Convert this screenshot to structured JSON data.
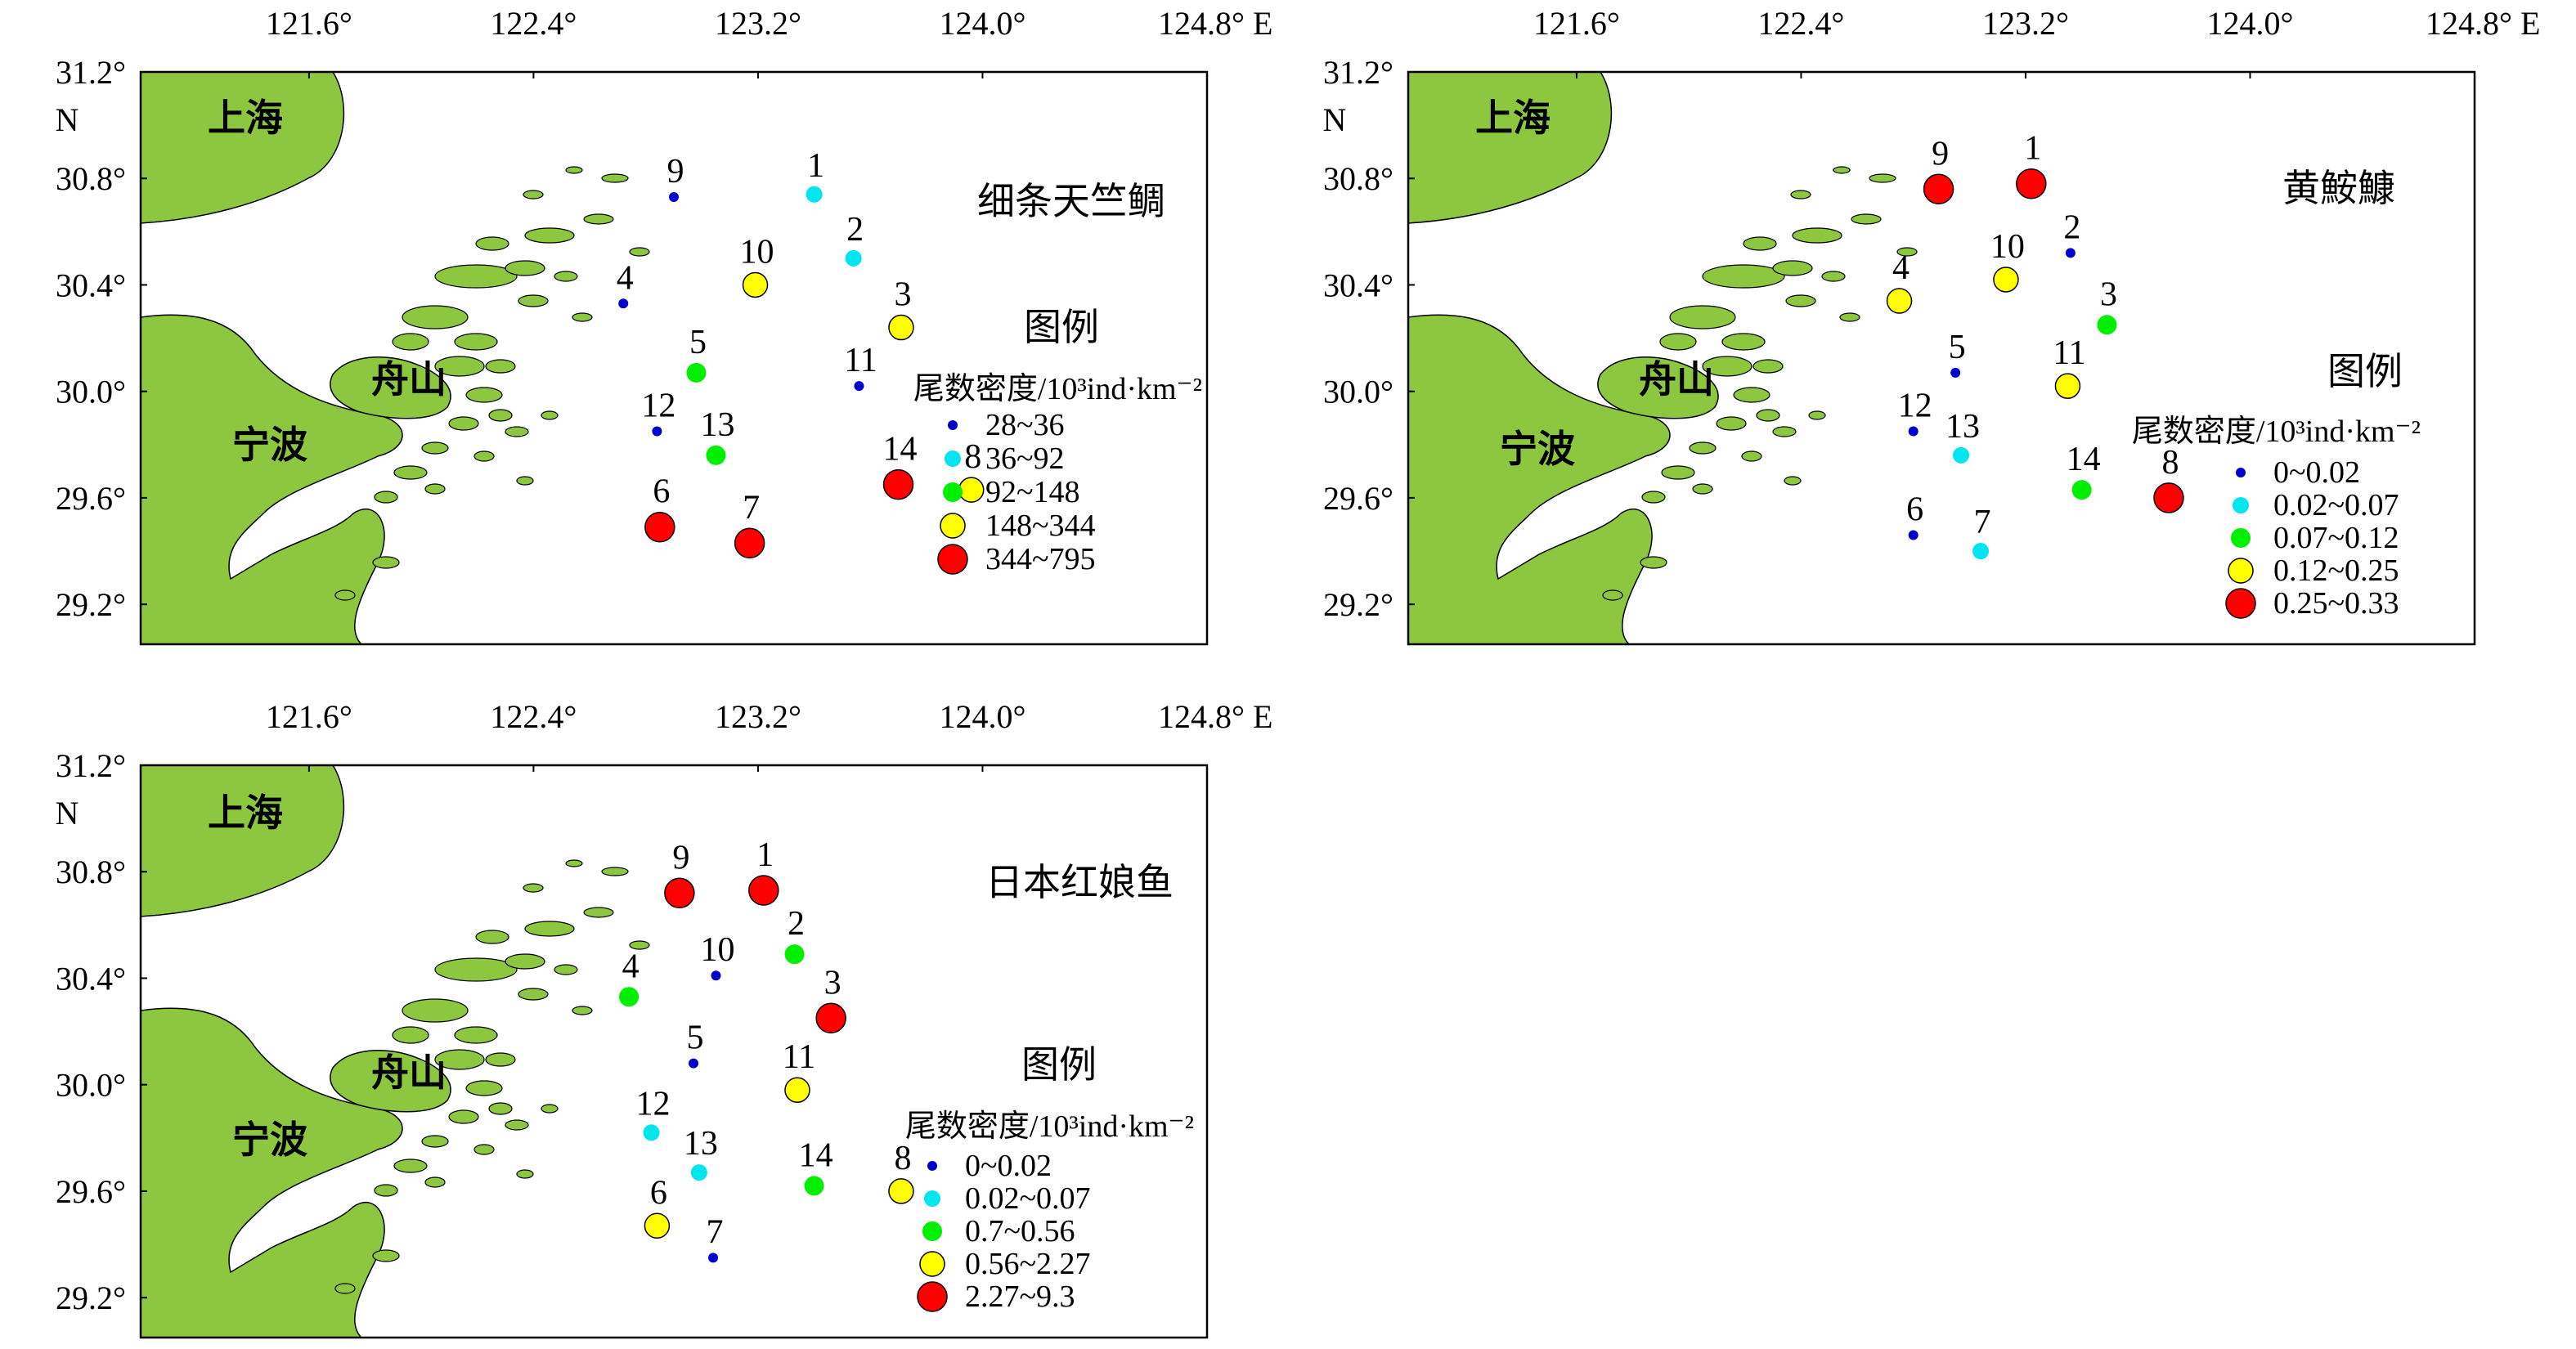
{
  "axes": {
    "lon_ticks": [
      121.6,
      122.4,
      123.2,
      124.0,
      124.8
    ],
    "lon_labels": [
      "121.6°",
      "122.4°",
      "123.2°",
      "124.0°",
      "124.8° E"
    ],
    "lat_ticks": [
      31.2,
      30.8,
      30.4,
      30.0,
      29.6,
      29.2
    ],
    "lat_labels": [
      "31.2°",
      "30.8°",
      "30.4°",
      "30.0°",
      "29.6°",
      "29.2°"
    ],
    "north_label": "N",
    "lon_range": [
      121.0,
      124.8
    ],
    "lat_range": [
      29.05,
      31.2
    ]
  },
  "places": {
    "shanghai": "上海",
    "zhoushan": "舟山",
    "ningbo": "宁波"
  },
  "legend_title": "图例",
  "legend_unit": "尾数密度/10³ind·km⁻²",
  "colors": {
    "land": "#8dc63f",
    "c1": "#0000cc",
    "c2": "#00e5ee",
    "c3": "#00ee00",
    "c4": "#ffff00",
    "c5": "#ff0000"
  },
  "chart_data": [
    {
      "type": "map",
      "title": "细条天竺鲷",
      "legend_ranges": [
        "28~36",
        "36~92",
        "92~148",
        "148~344",
        "344~795"
      ],
      "stations": [
        {
          "id": "1",
          "lon": 123.4,
          "lat": 30.74,
          "class": 2
        },
        {
          "id": "2",
          "lon": 123.54,
          "lat": 30.5,
          "class": 2
        },
        {
          "id": "3",
          "lon": 123.71,
          "lat": 30.24,
          "class": 4
        },
        {
          "id": "4",
          "lon": 122.72,
          "lat": 30.33,
          "class": 1
        },
        {
          "id": "5",
          "lon": 122.98,
          "lat": 30.07,
          "class": 3
        },
        {
          "id": "6",
          "lon": 122.85,
          "lat": 29.49,
          "class": 5
        },
        {
          "id": "7",
          "lon": 123.17,
          "lat": 29.43,
          "class": 5
        },
        {
          "id": "8",
          "lon": 123.96,
          "lat": 29.63,
          "class": 4
        },
        {
          "id": "9",
          "lon": 122.9,
          "lat": 30.73,
          "class": 1
        },
        {
          "id": "10",
          "lon": 123.19,
          "lat": 30.4,
          "class": 4
        },
        {
          "id": "11",
          "lon": 123.56,
          "lat": 30.02,
          "class": 1
        },
        {
          "id": "12",
          "lon": 122.84,
          "lat": 29.85,
          "class": 1
        },
        {
          "id": "13",
          "lon": 123.05,
          "lat": 29.76,
          "class": 3
        },
        {
          "id": "14",
          "lon": 123.7,
          "lat": 29.65,
          "class": 5
        }
      ]
    },
    {
      "type": "map",
      "title": "黄鮟鱇",
      "legend_ranges": [
        "0~0.02",
        "0.02~0.07",
        "0.07~0.12",
        "0.12~0.25",
        "0.25~0.33"
      ],
      "stations": [
        {
          "id": "1",
          "lon": 123.22,
          "lat": 30.78,
          "class": 5
        },
        {
          "id": "2",
          "lon": 123.36,
          "lat": 30.52,
          "class": 1
        },
        {
          "id": "3",
          "lon": 123.49,
          "lat": 30.25,
          "class": 3
        },
        {
          "id": "4",
          "lon": 122.75,
          "lat": 30.34,
          "class": 4
        },
        {
          "id": "5",
          "lon": 122.95,
          "lat": 30.07,
          "class": 1
        },
        {
          "id": "6",
          "lon": 122.8,
          "lat": 29.46,
          "class": 1
        },
        {
          "id": "7",
          "lon": 123.04,
          "lat": 29.4,
          "class": 2
        },
        {
          "id": "8",
          "lon": 123.71,
          "lat": 29.6,
          "class": 5
        },
        {
          "id": "9",
          "lon": 122.89,
          "lat": 30.76,
          "class": 5
        },
        {
          "id": "10",
          "lon": 123.13,
          "lat": 30.42,
          "class": 4
        },
        {
          "id": "11",
          "lon": 123.35,
          "lat": 30.02,
          "class": 4
        },
        {
          "id": "12",
          "lon": 122.8,
          "lat": 29.85,
          "class": 1
        },
        {
          "id": "13",
          "lon": 122.97,
          "lat": 29.76,
          "class": 2
        },
        {
          "id": "14",
          "lon": 123.4,
          "lat": 29.63,
          "class": 3
        }
      ]
    },
    {
      "type": "map",
      "title": "日本红娘鱼",
      "legend_ranges": [
        "0~0.02",
        "0.02~0.07",
        "0.7~0.56",
        "0.56~2.27",
        "2.27~9.3"
      ],
      "stations": [
        {
          "id": "1",
          "lon": 123.22,
          "lat": 30.73,
          "class": 5
        },
        {
          "id": "2",
          "lon": 123.33,
          "lat": 30.49,
          "class": 3
        },
        {
          "id": "3",
          "lon": 123.46,
          "lat": 30.25,
          "class": 5
        },
        {
          "id": "4",
          "lon": 122.74,
          "lat": 30.33,
          "class": 3
        },
        {
          "id": "5",
          "lon": 122.97,
          "lat": 30.08,
          "class": 1
        },
        {
          "id": "6",
          "lon": 122.84,
          "lat": 29.47,
          "class": 4
        },
        {
          "id": "7",
          "lon": 123.04,
          "lat": 29.35,
          "class": 1
        },
        {
          "id": "8",
          "lon": 123.71,
          "lat": 29.6,
          "class": 4
        },
        {
          "id": "9",
          "lon": 122.92,
          "lat": 30.72,
          "class": 5
        },
        {
          "id": "10",
          "lon": 123.05,
          "lat": 30.41,
          "class": 1
        },
        {
          "id": "11",
          "lon": 123.34,
          "lat": 29.98,
          "class": 4
        },
        {
          "id": "12",
          "lon": 122.82,
          "lat": 29.82,
          "class": 2
        },
        {
          "id": "13",
          "lon": 122.99,
          "lat": 29.67,
          "class": 2
        },
        {
          "id": "14",
          "lon": 123.4,
          "lat": 29.62,
          "class": 3
        }
      ]
    }
  ]
}
